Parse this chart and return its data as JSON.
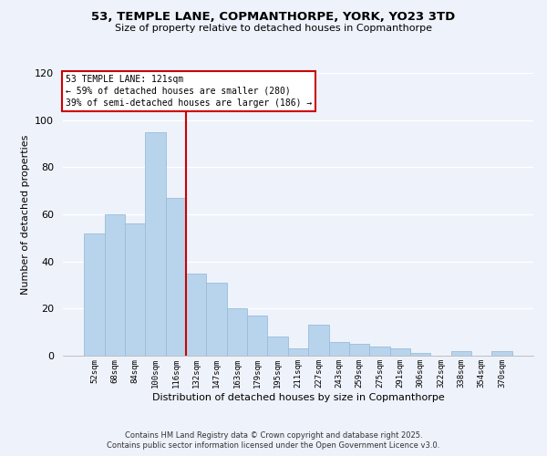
{
  "title1": "53, TEMPLE LANE, COPMANTHORPE, YORK, YO23 3TD",
  "title2": "Size of property relative to detached houses in Copmanthorpe",
  "xlabel": "Distribution of detached houses by size in Copmanthorpe",
  "ylabel": "Number of detached properties",
  "bar_color": "#b8d4ec",
  "bar_edge_color": "#9abcd8",
  "background_color": "#eef2fb",
  "grid_color": "#ffffff",
  "categories": [
    "52sqm",
    "68sqm",
    "84sqm",
    "100sqm",
    "116sqm",
    "132sqm",
    "147sqm",
    "163sqm",
    "179sqm",
    "195sqm",
    "211sqm",
    "227sqm",
    "243sqm",
    "259sqm",
    "275sqm",
    "291sqm",
    "306sqm",
    "322sqm",
    "338sqm",
    "354sqm",
    "370sqm"
  ],
  "values": [
    52,
    60,
    56,
    95,
    67,
    35,
    31,
    20,
    17,
    8,
    3,
    13,
    6,
    5,
    4,
    3,
    1,
    0,
    2,
    0,
    2
  ],
  "vline_x_index": 4,
  "vline_color": "#cc0000",
  "annotation_title": "53 TEMPLE LANE: 121sqm",
  "annotation_line1": "← 59% of detached houses are smaller (280)",
  "annotation_line2": "39% of semi-detached houses are larger (186) →",
  "annotation_box_color": "#ffffff",
  "annotation_box_edge": "#cc0000",
  "ylim": [
    0,
    120
  ],
  "yticks": [
    0,
    20,
    40,
    60,
    80,
    100,
    120
  ],
  "footer1": "Contains HM Land Registry data © Crown copyright and database right 2025.",
  "footer2": "Contains public sector information licensed under the Open Government Licence v3.0."
}
